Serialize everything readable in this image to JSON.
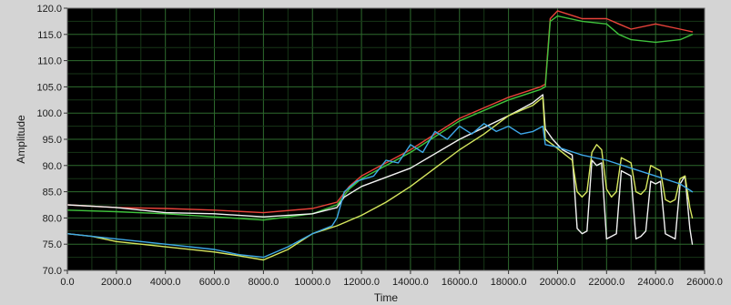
{
  "chart_data": {
    "type": "line",
    "title": "",
    "xlabel": "Time",
    "ylabel": "Amplitude",
    "xlim": [
      0,
      26000
    ],
    "ylim": [
      70,
      120
    ],
    "grid": true,
    "x_ticks": [
      {
        "value": 0,
        "label": "0.0"
      },
      {
        "value": 2000,
        "label": "2000.0"
      },
      {
        "value": 4000,
        "label": "4000.0"
      },
      {
        "value": 6000,
        "label": "6000.0"
      },
      {
        "value": 8000,
        "label": "8000.0"
      },
      {
        "value": 10000,
        "label": "10000.0"
      },
      {
        "value": 12000,
        "label": "12000.0"
      },
      {
        "value": 14000,
        "label": "14000.0"
      },
      {
        "value": 16000,
        "label": "16000.0"
      },
      {
        "value": 18000,
        "label": "18000.0"
      },
      {
        "value": 20000,
        "label": "20000.0"
      },
      {
        "value": 22000,
        "label": "22000.0"
      },
      {
        "value": 24000,
        "label": "24000.0"
      },
      {
        "value": 26000,
        "label": "26000.0"
      }
    ],
    "y_ticks": [
      {
        "value": 70,
        "label": "70.0"
      },
      {
        "value": 75,
        "label": "75.0"
      },
      {
        "value": 80,
        "label": "80.0"
      },
      {
        "value": 85,
        "label": "85.0"
      },
      {
        "value": 90,
        "label": "90.0"
      },
      {
        "value": 95,
        "label": "95.0"
      },
      {
        "value": 100,
        "label": "100.0"
      },
      {
        "value": 105,
        "label": "105.0"
      },
      {
        "value": 110,
        "label": "110.0"
      },
      {
        "value": 115,
        "label": "115.0"
      },
      {
        "value": 120,
        "label": "120.0"
      }
    ],
    "series": [
      {
        "color": "#e8433a",
        "x": [
          0,
          2000,
          4000,
          6000,
          8000,
          10000,
          11000,
          11500,
          12000,
          14000,
          16000,
          18000,
          19300,
          19500,
          19700,
          20000,
          21000,
          22000,
          22500,
          23000,
          24000,
          25000,
          25500
        ],
        "y": [
          82.5,
          82.0,
          81.8,
          81.5,
          81.0,
          81.8,
          83.0,
          86.0,
          88.0,
          93.0,
          99.0,
          103.0,
          105.0,
          105.5,
          118.0,
          119.5,
          118.0,
          118.0,
          117.0,
          116.0,
          117.0,
          116.0,
          115.5
        ]
      },
      {
        "color": "#3fc23c",
        "x": [
          0,
          2000,
          4000,
          6000,
          8000,
          10000,
          11000,
          11500,
          12000,
          14000,
          16000,
          18000,
          19300,
          19500,
          19700,
          20000,
          21000,
          22000,
          22500,
          23000,
          24000,
          25000,
          25500
        ],
        "y": [
          81.5,
          81.2,
          80.8,
          80.2,
          79.6,
          80.8,
          82.5,
          85.5,
          87.5,
          92.5,
          98.5,
          102.5,
          104.5,
          105.0,
          117.5,
          118.5,
          117.5,
          117.0,
          115.0,
          114.0,
          113.5,
          114.0,
          115.0
        ]
      },
      {
        "color": "#f2f2f2",
        "x": [
          0,
          2000,
          4000,
          6000,
          8000,
          10000,
          11000,
          11300,
          12000,
          14000,
          16000,
          18000,
          19000,
          19400,
          19500,
          19800,
          20200,
          20600,
          20800,
          21000,
          21200,
          21400,
          21600,
          21800,
          22000,
          22200,
          22400,
          22600,
          22800,
          23000,
          23200,
          23400,
          23600,
          23800,
          24000,
          24200,
          24400,
          24600,
          24800,
          25000,
          25200,
          25400,
          25500
        ],
        "y": [
          82.5,
          82.0,
          81.0,
          80.8,
          80.2,
          80.8,
          82.0,
          84.0,
          86.0,
          89.5,
          95.0,
          99.5,
          102.0,
          103.5,
          97.0,
          95.0,
          93.0,
          92.0,
          78.0,
          77.0,
          77.5,
          91.0,
          90.0,
          90.5,
          76.0,
          76.5,
          77.0,
          89.0,
          88.5,
          88.0,
          76.0,
          76.5,
          77.5,
          87.0,
          86.5,
          87.0,
          77.0,
          76.5,
          76.0,
          86.5,
          88.0,
          78.0,
          75.0
        ]
      },
      {
        "color": "#d6e65e",
        "x": [
          0,
          1000,
          2000,
          4000,
          6000,
          7000,
          8000,
          9000,
          10000,
          11000,
          12000,
          13000,
          14000,
          15000,
          16000,
          17000,
          18000,
          19000,
          19400,
          19500,
          19800,
          20200,
          20600,
          20800,
          21000,
          21200,
          21400,
          21600,
          21800,
          22000,
          22200,
          22400,
          22600,
          22800,
          23000,
          23200,
          23400,
          23600,
          23800,
          24000,
          24200,
          24400,
          24600,
          24800,
          25000,
          25200,
          25400,
          25500
        ],
        "y": [
          77.0,
          76.5,
          75.5,
          74.5,
          73.5,
          72.8,
          72.0,
          74.0,
          77.0,
          78.5,
          80.5,
          83.0,
          86.0,
          89.5,
          93.0,
          96.0,
          99.5,
          101.5,
          103.0,
          95.0,
          94.0,
          92.5,
          91.0,
          85.0,
          84.0,
          85.0,
          92.5,
          94.0,
          93.0,
          85.5,
          84.0,
          85.0,
          91.5,
          91.0,
          90.5,
          85.0,
          84.5,
          85.5,
          90.0,
          89.5,
          89.0,
          83.5,
          83.0,
          83.5,
          87.5,
          88.0,
          82.0,
          80.0
        ]
      },
      {
        "color": "#3ea8e8",
        "x": [
          0,
          1000,
          2000,
          4000,
          6000,
          7000,
          8000,
          9000,
          10000,
          10800,
          11000,
          11300,
          11800,
          12500,
          13000,
          13500,
          14000,
          14500,
          15000,
          15500,
          16000,
          16500,
          17000,
          17500,
          18000,
          18500,
          19000,
          19400,
          19500,
          20000,
          21000,
          22000,
          23000,
          24000,
          25000,
          25500
        ],
        "y": [
          77.0,
          76.5,
          76.0,
          75.0,
          74.0,
          73.0,
          72.5,
          74.5,
          77.0,
          78.5,
          80.0,
          85.0,
          87.0,
          88.0,
          91.0,
          90.5,
          94.0,
          92.5,
          96.5,
          95.0,
          97.5,
          96.0,
          98.0,
          96.5,
          97.5,
          96.0,
          96.5,
          97.5,
          94.0,
          93.5,
          92.0,
          91.0,
          89.5,
          88.0,
          86.5,
          85.0
        ]
      }
    ]
  }
}
